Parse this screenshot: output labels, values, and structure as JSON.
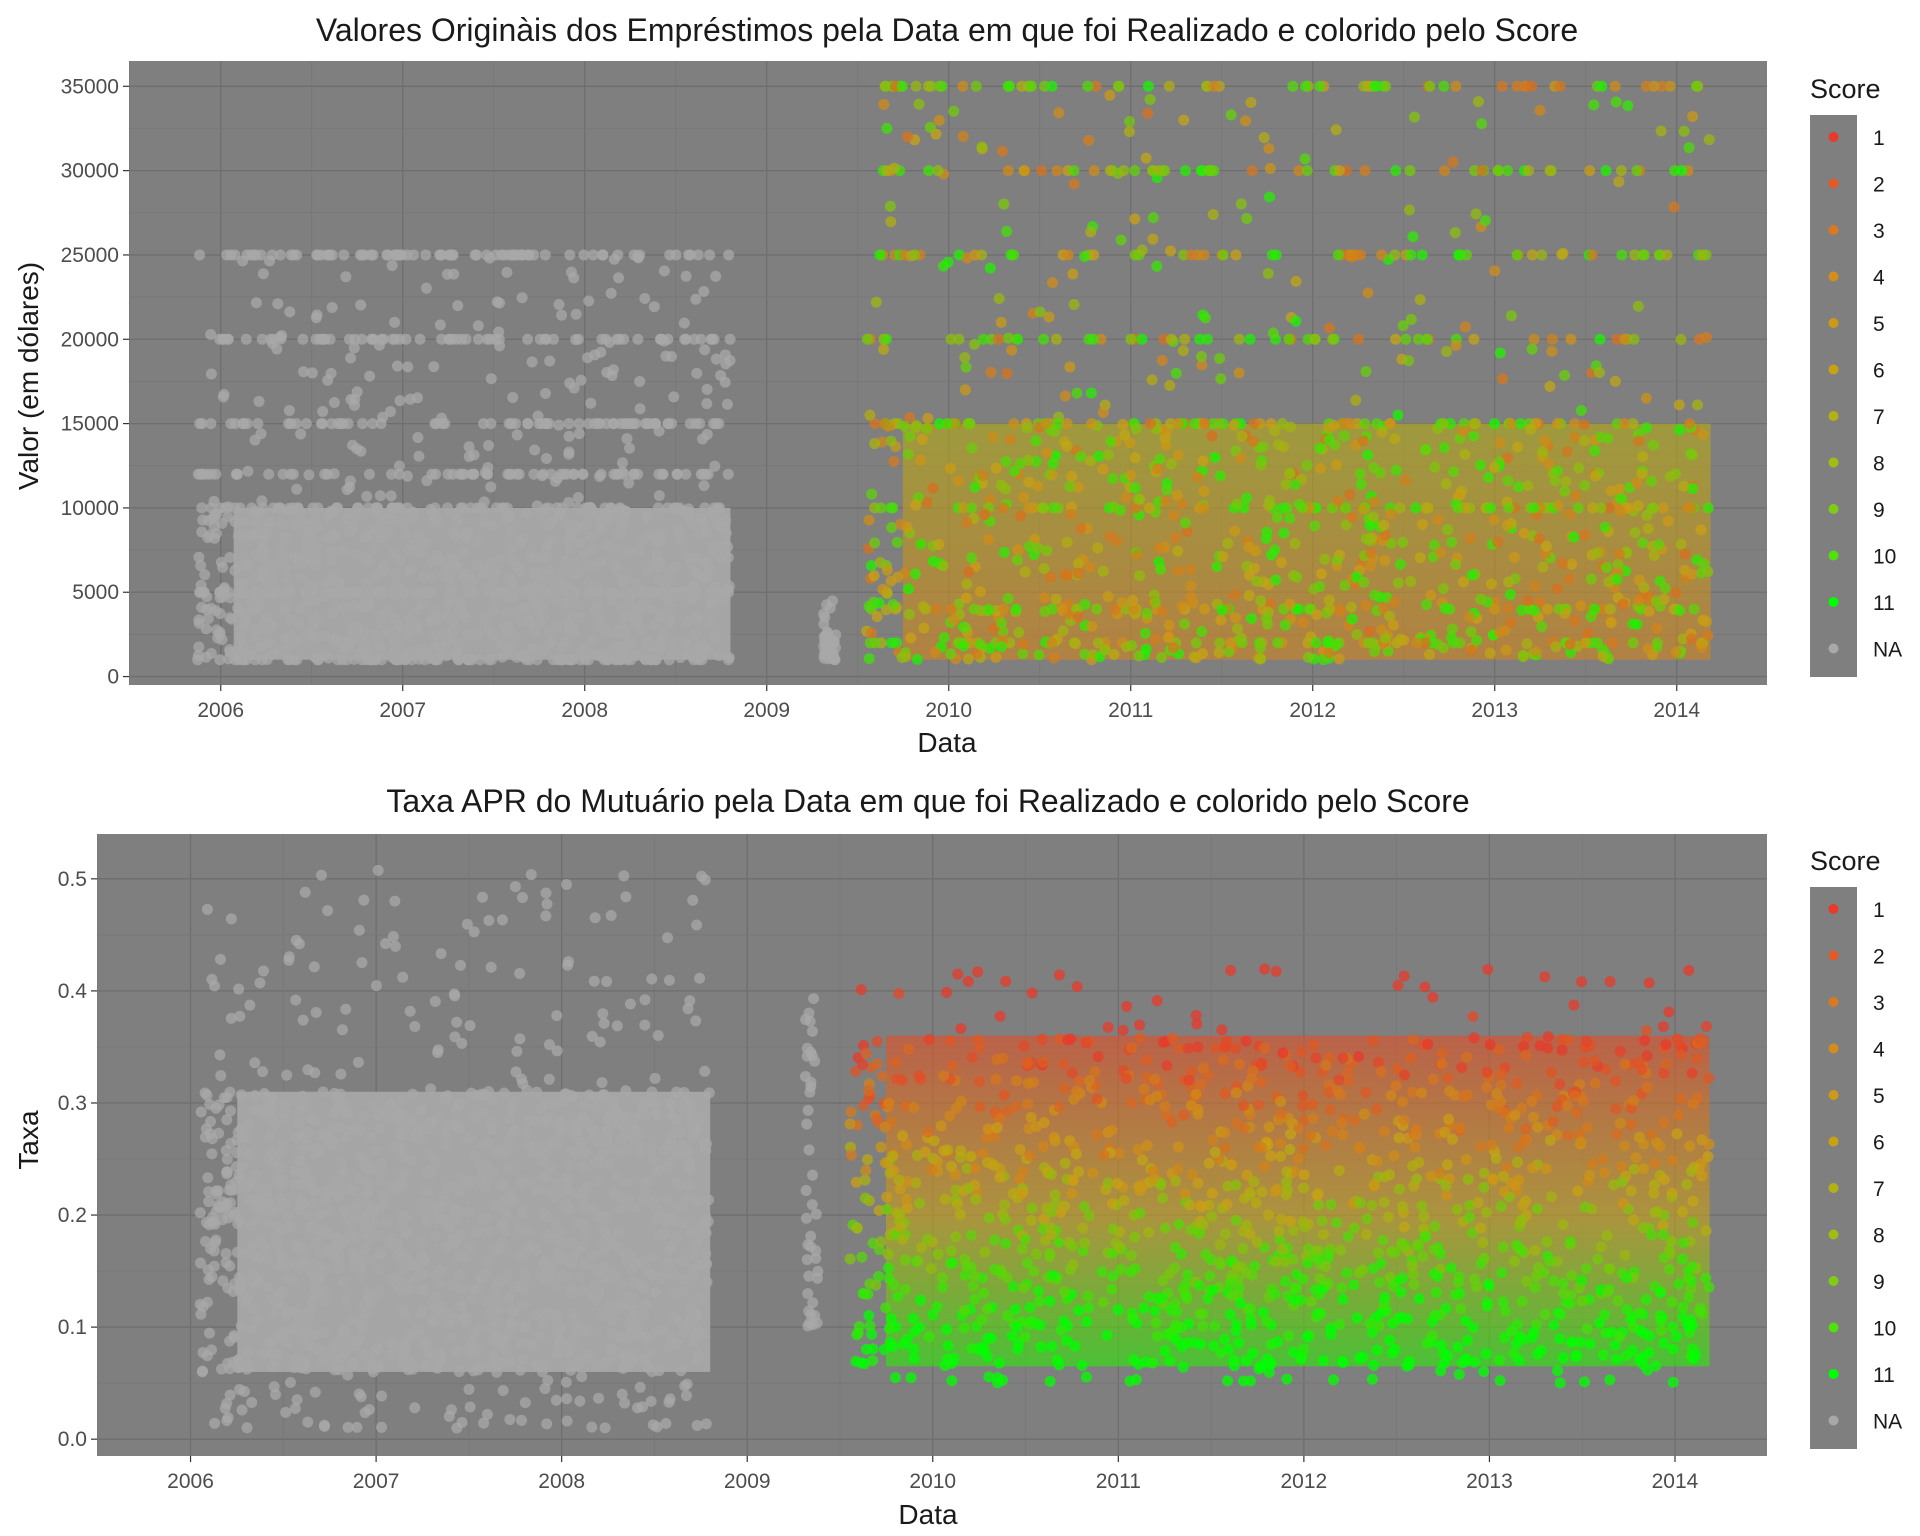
{
  "colors": {
    "panel_bg": "#7f7f7f",
    "grid_major": "#6e6e6e",
    "grid_minor": "#767676",
    "na_point": "#a8a8a8",
    "score_low": "#e8392b",
    "score_mid": "#c8a214",
    "score_high": "#00ff00"
  },
  "chart_data": [
    {
      "type": "scatter",
      "title": "Valores Originàis dos Empréstimos pela Data em que foi Realizado e colorido pelo Score",
      "xlabel": "Data",
      "ylabel": "Valor (em dólares)",
      "x_range": [
        "2005-07-01",
        "2014-07-01"
      ],
      "x_ticks": [
        "2006",
        "2007",
        "2008",
        "2009",
        "2010",
        "2011",
        "2012",
        "2013",
        "2014"
      ],
      "ylim": [
        -500,
        36500
      ],
      "y_ticks": [
        0,
        5000,
        10000,
        15000,
        20000,
        25000,
        30000,
        35000
      ],
      "y_tick_labels": [
        "0",
        "5000",
        "10000",
        "15000",
        "20000",
        "25000",
        "30000",
        "35000"
      ],
      "grid": true,
      "legend": {
        "title": "Score",
        "placement": "right",
        "entries": [
          "1",
          "2",
          "3",
          "4",
          "5",
          "6",
          "7",
          "8",
          "9",
          "10",
          "11",
          "NA"
        ],
        "colors": [
          "#e8392b",
          "#e35a27",
          "#d97a22",
          "#d38d1c",
          "#cf9918",
          "#c8a214",
          "#b4b114",
          "#a0bd14",
          "#80cc14",
          "#50e00c",
          "#00ff00",
          "#a8a8a8"
        ]
      },
      "regions": [
        {
          "score": "NA",
          "x_start": "2005-11-15",
          "x_end": "2008-10-20",
          "y_min": 1000,
          "y_max": 25000,
          "dense_max": 10000,
          "bands": [
            1000,
            5000,
            10000,
            12000,
            15000,
            20000,
            25000
          ]
        },
        {
          "score": "NA",
          "x_start": "2009-04-25",
          "x_end": "2009-05-20",
          "y_min": 1000,
          "y_max": 4500
        },
        {
          "score": "1-11",
          "x_start": "2009-07-20",
          "x_end": "2014-03-10",
          "y_min": 1000,
          "y_max": 35000,
          "dense_max": 15000,
          "bands": [
            2000,
            4000,
            10000,
            15000,
            20000,
            25000,
            30000,
            35000
          ]
        }
      ]
    },
    {
      "type": "scatter",
      "title": "Taxa APR do Mutuário pela Data em que foi Realizado e colorido pelo Score",
      "xlabel": "Data",
      "ylabel": "Taxa",
      "x_range": [
        "2005-07-01",
        "2014-07-01"
      ],
      "x_ticks": [
        "2006",
        "2007",
        "2008",
        "2009",
        "2010",
        "2011",
        "2012",
        "2013",
        "2014"
      ],
      "ylim": [
        -0.015,
        0.54
      ],
      "y_ticks": [
        0.0,
        0.1,
        0.2,
        0.3,
        0.4,
        0.5
      ],
      "y_tick_labels": [
        "0.0",
        "0.1",
        "0.2",
        "0.3",
        "0.4",
        "0.5"
      ],
      "grid": true,
      "legend": {
        "title": "Score",
        "placement": "right",
        "entries": [
          "1",
          "2",
          "3",
          "4",
          "5",
          "6",
          "7",
          "8",
          "9",
          "10",
          "11",
          "NA"
        ],
        "colors": [
          "#e8392b",
          "#e35a27",
          "#d97a22",
          "#d38d1c",
          "#cf9918",
          "#c8a214",
          "#b4b114",
          "#a0bd14",
          "#80cc14",
          "#50e00c",
          "#00ff00",
          "#a8a8a8"
        ]
      },
      "regions": [
        {
          "score": "NA",
          "x_start": "2006-01-20",
          "x_end": "2008-10-20",
          "y_min": 0.01,
          "y_max": 0.51,
          "dense_min": 0.06,
          "dense_max": 0.31
        },
        {
          "score": "NA",
          "x_start": "2009-04-25",
          "x_end": "2009-05-20",
          "y_min": 0.1,
          "y_max": 0.4
        },
        {
          "score": "1-11",
          "x_start": "2009-07-20",
          "x_end": "2014-03-10",
          "y_min": 0.05,
          "y_max": 0.42,
          "dense_min": 0.065,
          "dense_max": 0.36
        }
      ]
    }
  ]
}
